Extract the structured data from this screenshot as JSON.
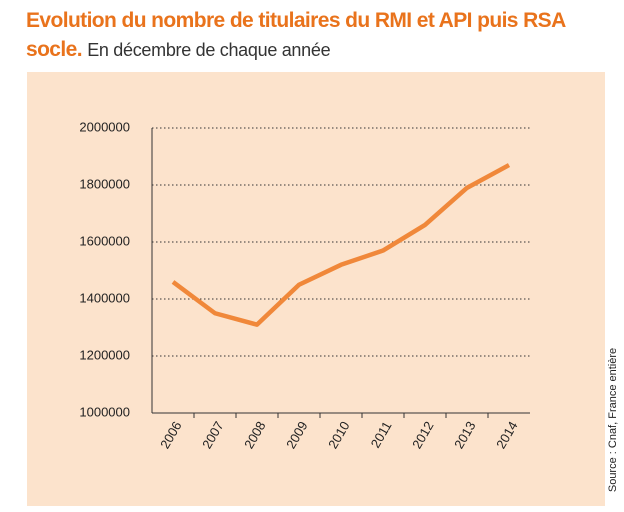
{
  "chart_data": {
    "type": "line",
    "title": "Evolution du nombre de titulaires du RMI et API puis RSA socle.",
    "subtitle": "En décembre de chaque année",
    "source": "Source : Cnaf, France entière",
    "categories": [
      "2006",
      "2007",
      "2008",
      "2009",
      "2010",
      "2011",
      "2012",
      "2013",
      "2014"
    ],
    "values": [
      1460000,
      1350000,
      1310000,
      1450000,
      1520000,
      1570000,
      1660000,
      1790000,
      1870000
    ],
    "color": "#f0883a",
    "ylim": [
      1000000,
      2000000
    ],
    "yticks": [
      1000000,
      1200000,
      1400000,
      1600000,
      1800000,
      2000000
    ],
    "grid": true
  }
}
